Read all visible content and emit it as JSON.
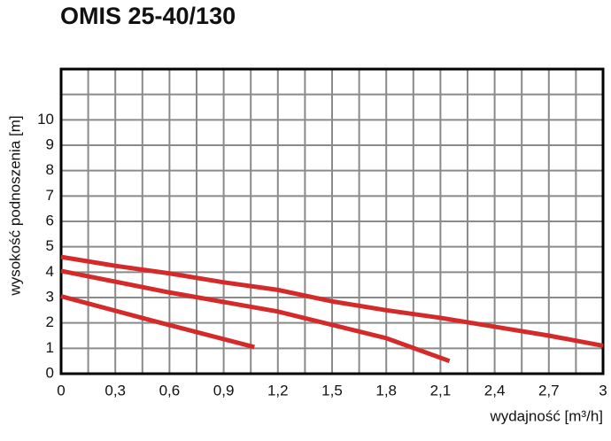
{
  "chart_data": {
    "type": "line",
    "title": "OMIS 25-40/130",
    "x_label": "wydajność [m³/h]",
    "y_label": "wysokość podnoszenia [m]",
    "xlim": [
      0,
      3
    ],
    "ylim": [
      0,
      12
    ],
    "xticks": [
      0,
      {
        "value": 0.3,
        "label": "0,3"
      },
      {
        "value": 0.6,
        "label": "0,6"
      },
      {
        "value": 0.9,
        "label": "0,9"
      },
      {
        "value": 1.2,
        "label": "1,2"
      },
      {
        "value": 1.5,
        "label": "1,5"
      },
      {
        "value": 1.8,
        "label": "1,8"
      },
      {
        "value": 2.1,
        "label": "2,1"
      },
      {
        "value": 2.4,
        "label": "2,4"
      },
      {
        "value": 2.7,
        "label": "2,7"
      },
      3
    ],
    "yticks": [
      0,
      1,
      2,
      3,
      4,
      5,
      6,
      7,
      8,
      9,
      10
    ],
    "grid": true,
    "series": [
      {
        "color": "#d42a2a",
        "x": [
          0,
          0.5,
          1.07
        ],
        "values": [
          3.05,
          2.1,
          1.05
        ]
      },
      {
        "color": "#d42a2a",
        "x": [
          0,
          0.6,
          1.2,
          1.8,
          2.15
        ],
        "values": [
          4.05,
          3.2,
          2.45,
          1.4,
          0.5
        ]
      },
      {
        "color": "#d42a2a",
        "x": [
          0,
          0.3,
          0.6,
          0.9,
          1.2,
          1.5,
          1.8,
          2.1,
          2.4,
          2.7,
          3
        ],
        "values": [
          4.6,
          4.25,
          3.95,
          3.6,
          3.3,
          2.85,
          2.5,
          2.2,
          1.85,
          1.5,
          1.1
        ]
      }
    ]
  }
}
